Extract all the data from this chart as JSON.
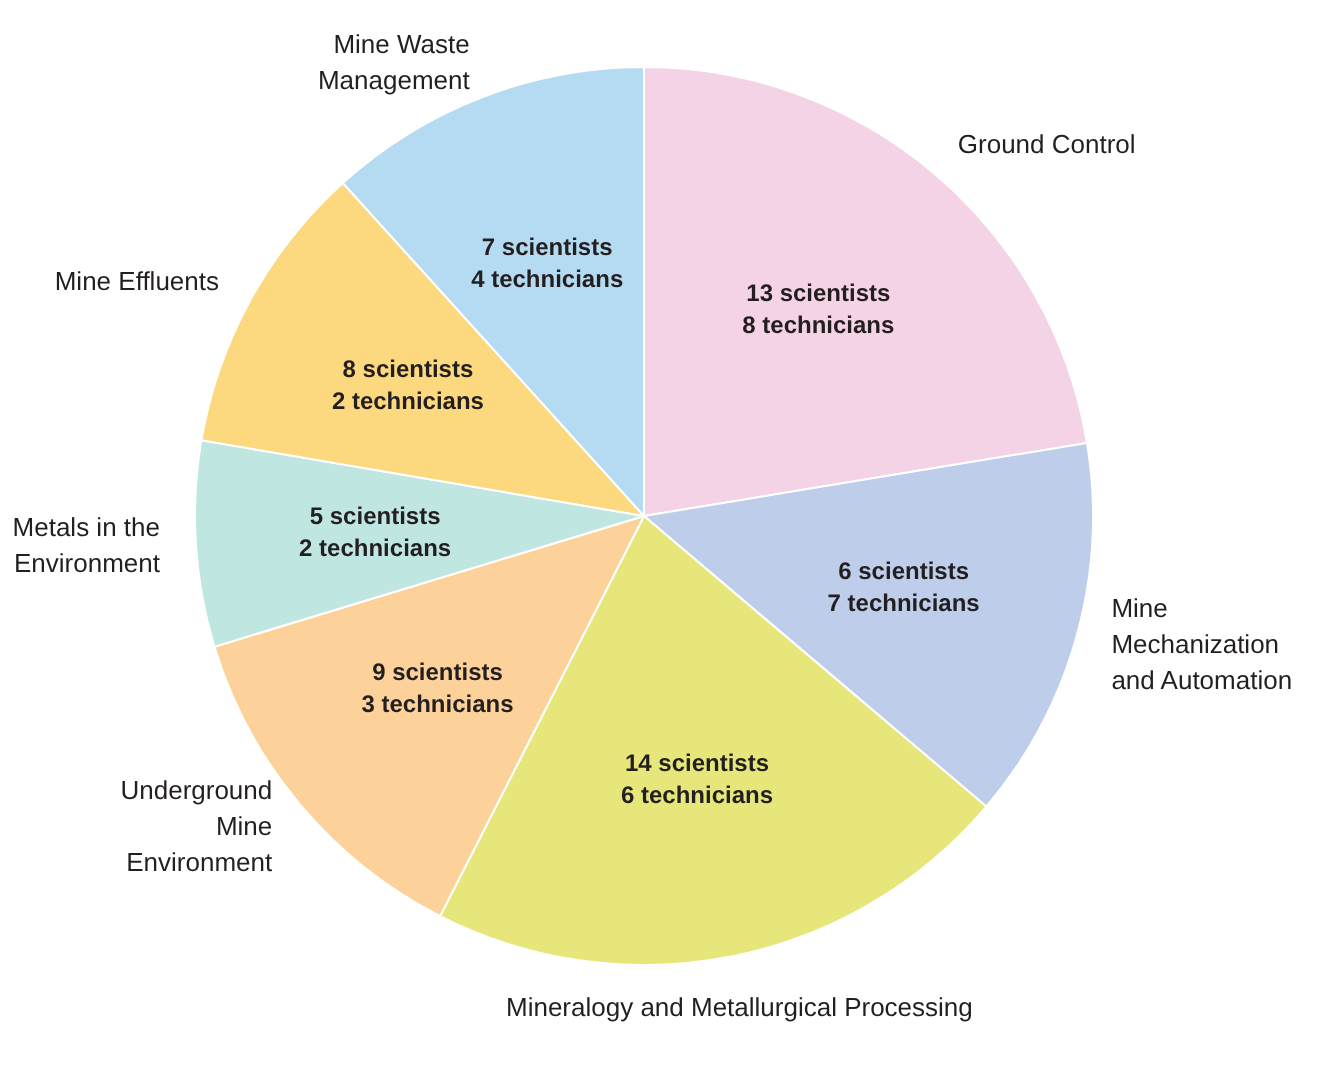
{
  "chart_data": {
    "type": "pie",
    "categories": [
      "Ground Control",
      "Mine Mechanization and Automation",
      "Mineralogy and Metallurgical Processing",
      "Underground Mine Environment",
      "Metals in the Environment",
      "Mine Effluents",
      "Mine Waste Management"
    ],
    "values": [
      22.4,
      13.8,
      21.3,
      12.8,
      7.4,
      10.6,
      11.7
    ],
    "colors": [
      "#f4d3e6",
      "#bdcdea",
      "#e6e67a",
      "#fdd29a",
      "#bfe6e0",
      "#fcd97e",
      "#b5dbf2"
    ],
    "annotations": [
      "13 scientists\n8 technicians",
      "6 scientists\n7 technicians",
      "14 scientists\n6 technicians",
      "9 scientists\n3 technicians",
      "5 scientists\n2 technicians",
      "8 scientists\n2 technicians",
      "7 scientists\n4 technicians"
    ],
    "legend": false
  }
}
